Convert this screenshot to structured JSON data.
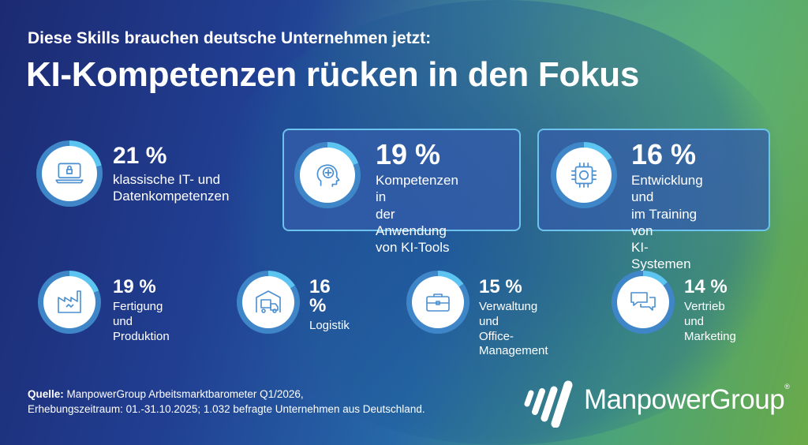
{
  "header": {
    "subtitle": "Diese Skills brauchen deutsche Unternehmen jetzt:",
    "title": "KI-Kompetenzen rücken in den Fokus"
  },
  "colors": {
    "ring_track": "#3f86c8",
    "ring_fill": "#5cc4f0",
    "icon": "#4a8fd0",
    "box_border": "#6cc3ee"
  },
  "items": [
    {
      "percent": "21 %",
      "value": 21,
      "icon": "laptop-lock-icon",
      "lines": [
        "klassische IT- und",
        "Datenkompetenzen"
      ]
    },
    {
      "percent": "19 %",
      "value": 19,
      "icon": "head-brain-icon",
      "lines": [
        "Kompetenzen in",
        "der Anwendung",
        "von KI-Tools"
      ]
    },
    {
      "percent": "16 %",
      "value": 16,
      "icon": "ai-chip-icon",
      "lines": [
        "Entwicklung und",
        "im Training von",
        "KI-Systemen"
      ]
    },
    {
      "percent": "19 %",
      "value": 19,
      "icon": "factory-icon",
      "lines": [
        "Fertigung und",
        "Produktion"
      ]
    },
    {
      "percent": "16 %",
      "value": 16,
      "icon": "warehouse-truck-icon",
      "lines": [
        "Logistik"
      ]
    },
    {
      "percent": "15 %",
      "value": 15,
      "icon": "briefcase-icon",
      "lines": [
        "Verwaltung und",
        "Office-Management"
      ]
    },
    {
      "percent": "14 %",
      "value": 14,
      "icon": "speech-bubbles-icon",
      "lines": [
        "Vertrieb und",
        "Marketing"
      ]
    }
  ],
  "footer": {
    "source_label": "Quelle:",
    "line1": " ManpowerGroup Arbeitsmarktbarometer Q1/2026,",
    "line2": "Erhebungszeitraum: 01.-31.10.2025; 1.032 befragte Unternehmen aus Deutschland."
  },
  "logo": {
    "text": "ManpowerGroup",
    "reg": "®"
  }
}
